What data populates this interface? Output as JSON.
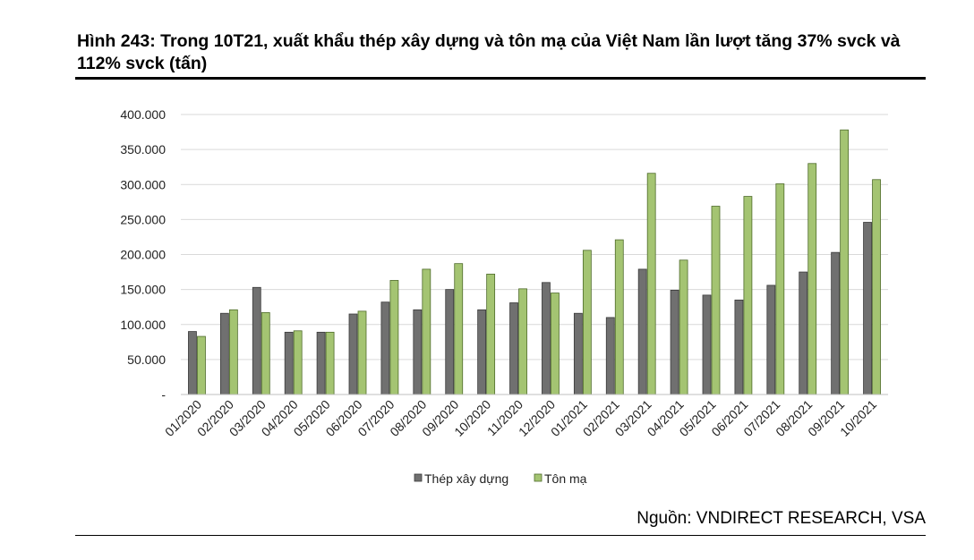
{
  "figure": {
    "title": "Hình 243: Trong 10T21, xuất khẩu thép xây dựng và tôn mạ của Việt Nam lần lượt tăng 37% svck và 112% svck (tấn)",
    "source": "Nguồn: VNDIRECT RESEARCH, VSA"
  },
  "colors": {
    "steel": "#707070",
    "galvanized": "#a4c472",
    "grid": "#d9d9d9"
  },
  "chart_data": {
    "type": "bar",
    "categories": [
      "01/2020",
      "02/2020",
      "03/2020",
      "04/2020",
      "05/2020",
      "06/2020",
      "07/2020",
      "08/2020",
      "09/2020",
      "10/2020",
      "11/2020",
      "12/2020",
      "01/2021",
      "02/2021",
      "03/2021",
      "04/2021",
      "05/2021",
      "06/2021",
      "07/2021",
      "08/2021",
      "09/2021",
      "10/2021"
    ],
    "series": [
      {
        "name": "Thép xây dựng",
        "values": [
          90000,
          116000,
          153000,
          89000,
          89000,
          115000,
          132000,
          121000,
          150000,
          121000,
          131000,
          160000,
          116000,
          110000,
          179000,
          149000,
          142000,
          135000,
          156000,
          175000,
          203000,
          246000
        ]
      },
      {
        "name": "Tôn mạ",
        "values": [
          83000,
          121000,
          117000,
          91000,
          89000,
          119000,
          163000,
          179000,
          187000,
          172000,
          151000,
          145000,
          206000,
          221000,
          316000,
          192000,
          269000,
          283000,
          301000,
          330000,
          378000,
          307000
        ]
      }
    ],
    "ylim": [
      0,
      400000
    ],
    "yticks": [
      0,
      50000,
      100000,
      150000,
      200000,
      250000,
      300000,
      350000,
      400000
    ],
    "ytick_labels": [
      "-",
      "50.000",
      "100.000",
      "150.000",
      "200.000",
      "250.000",
      "300.000",
      "350.000",
      "400.000"
    ],
    "grid": true,
    "legend_position": "bottom-center"
  }
}
